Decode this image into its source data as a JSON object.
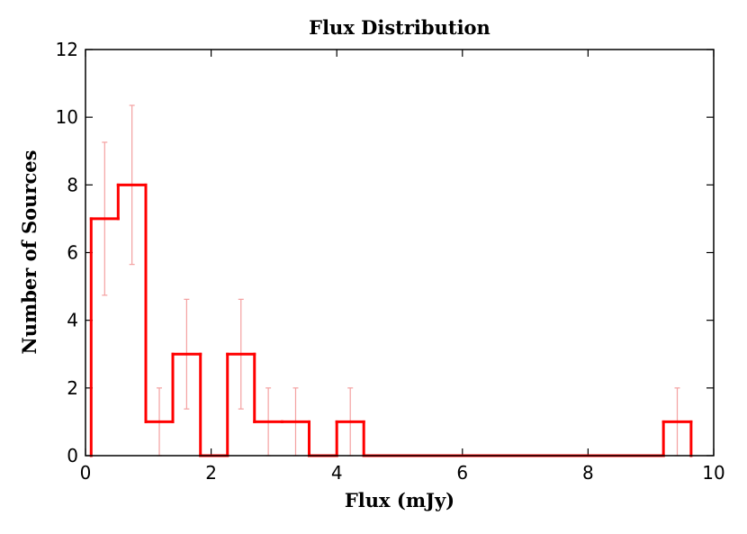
{
  "chart_data": {
    "type": "histogram",
    "title": "Flux Distribution",
    "x_label": "Flux (mJy)",
    "y_label": "Number of Sources",
    "bins": [
      0.09,
      0.52,
      0.96,
      1.39,
      1.83,
      2.26,
      2.69,
      3.13,
      3.56,
      4.0,
      4.43,
      4.86,
      5.3,
      5.73,
      6.17,
      6.6,
      7.03,
      7.47,
      7.9,
      8.34,
      8.77,
      9.2,
      9.64
    ],
    "values": [
      7,
      8,
      1,
      3,
      0,
      3,
      1,
      1,
      0,
      1,
      0,
      0,
      0,
      0,
      0,
      0,
      0,
      0,
      0,
      0,
      0,
      1
    ],
    "errors": [
      2.26,
      2.35,
      1,
      1.62,
      0,
      1.62,
      1,
      1,
      0,
      1,
      0,
      0,
      0,
      0,
      0,
      0,
      0,
      0,
      0,
      0,
      0,
      1
    ],
    "color": "#ff0000",
    "error_color": "#f4a0a0",
    "xlim": [
      0,
      10
    ],
    "xticks": [
      0,
      2,
      4,
      6,
      8,
      10
    ],
    "ylim": [
      0,
      12
    ],
    "yticks": [
      0,
      2,
      4,
      6,
      8,
      10,
      12
    ]
  }
}
